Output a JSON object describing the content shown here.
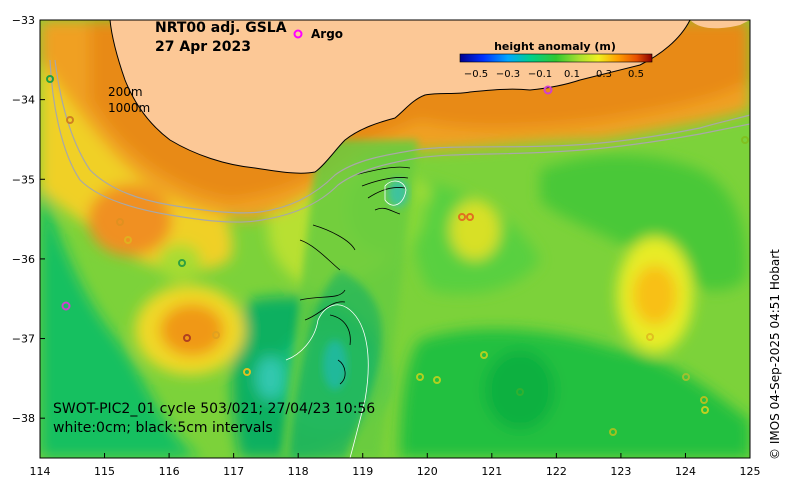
{
  "title": {
    "line1": "NRT00 adj. GSLA",
    "line2": "27 Apr 2023"
  },
  "legend": {
    "argo_label": "Argo",
    "argo_color": "#ff00ff"
  },
  "colorbar": {
    "title": "height anomaly (m)",
    "ticks": [
      "−0.5",
      "−0.3",
      "−0.1",
      "0.1",
      "0.3",
      "0.5"
    ],
    "range": [
      -0.5,
      0.5
    ]
  },
  "depth_labels": {
    "contour_a": "200m",
    "contour_b": "1000m"
  },
  "swot": {
    "line1": "SWOT-PIC2_01 cycle 503/021; 27/04/23 10:56",
    "line2": "white:0cm; black:5cm intervals"
  },
  "credit": "© IMOS 04-Sep-2025 04:51 Hobart",
  "axes": {
    "x_ticks": [
      "114",
      "115",
      "116",
      "117",
      "118",
      "119",
      "120",
      "121",
      "122",
      "123",
      "124",
      "125"
    ],
    "y_ticks": [
      "−33",
      "−34",
      "−35",
      "−36",
      "−37",
      "−38"
    ],
    "x_range": [
      114,
      125
    ],
    "y_range": [
      -38.5,
      -33
    ]
  },
  "colors": {
    "land": "#fcc896",
    "coastline": "#000000",
    "isobath": "#a8a8a8"
  }
}
